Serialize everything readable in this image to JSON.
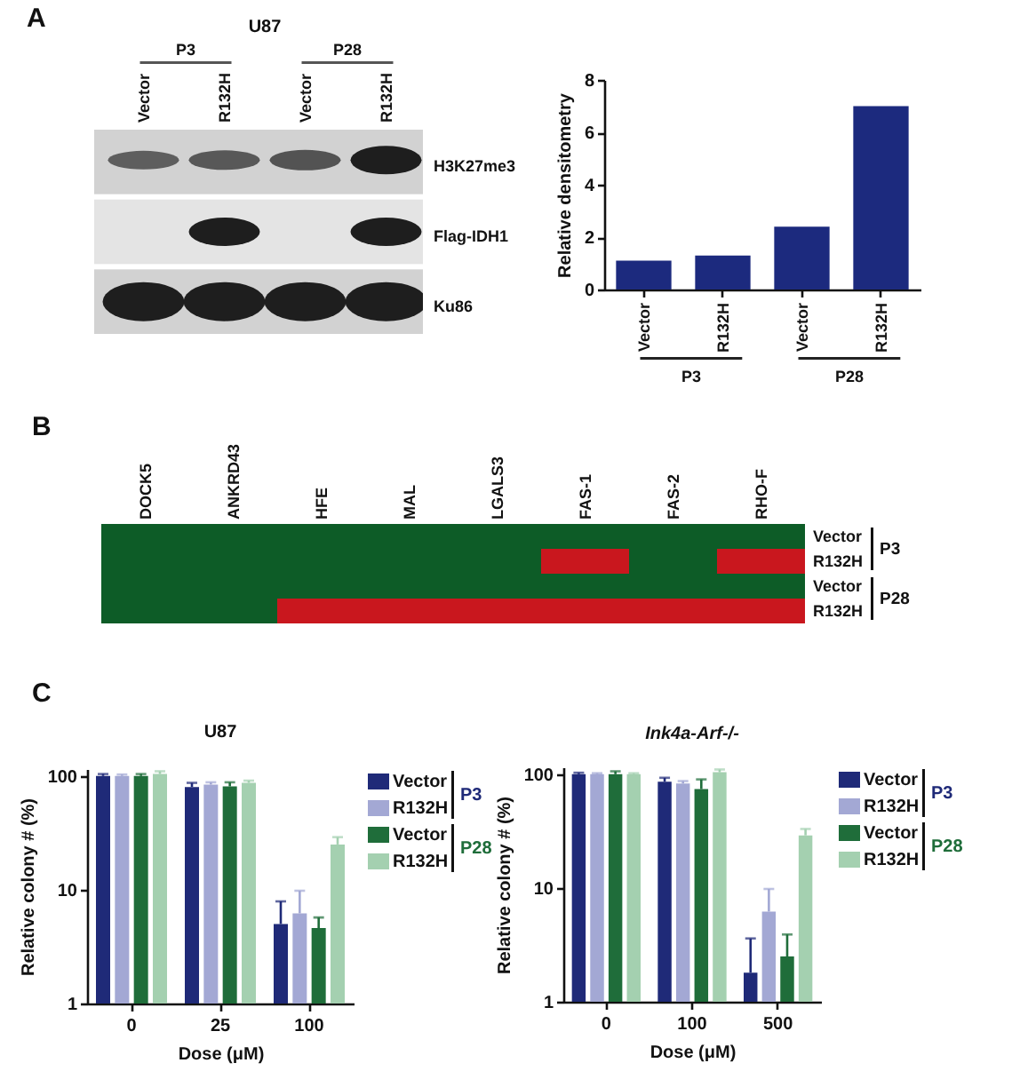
{
  "chart_data": [
    {
      "type": "other",
      "title": "A",
      "subtitle": "U87",
      "categories": [
        "Vector",
        "R132H",
        "Vector",
        "R132H"
      ],
      "y_categories": [
        "H3K27me3",
        "Flag-IDH1",
        "Ku86"
      ],
      "annotations": [
        "P3",
        "P28"
      ]
    },
    {
      "type": "bar",
      "categories": [
        "Vector",
        "R132H",
        "Vector",
        "R132H"
      ],
      "values": [
        1.1,
        1.3,
        2.4,
        7.0
      ],
      "color": "#1c2a7e",
      "ylabel": "Relative densitometry",
      "ylim": [
        0,
        8
      ],
      "yticks": [
        0,
        2,
        4,
        6,
        8
      ],
      "annotations": [
        "P3",
        "P28"
      ]
    },
    {
      "type": "other",
      "title": "B",
      "categories": [
        "DOCK5",
        "ANKRD43",
        "HFE",
        "MAL",
        "LGALS3",
        "FAS-1",
        "FAS-2",
        "RHO-F"
      ],
      "y_categories": [
        "Vector",
        "R132H",
        "Vector",
        "R132H"
      ],
      "colors": [
        [
          "#0d5c27",
          "#0d5c27",
          "#0d5c27",
          "#0d5c27",
          "#0d5c27",
          "#0d5c27",
          "#0d5c27",
          "#0d5c27"
        ],
        [
          "#0d5c27",
          "#0d5c27",
          "#0d5c27",
          "#0d5c27",
          "#0d5c27",
          "#c9171e",
          "#0d5c27",
          "#c9171e"
        ],
        [
          "#0d5c27",
          "#0d5c27",
          "#0d5c27",
          "#0d5c27",
          "#0d5c27",
          "#0d5c27",
          "#0d5c27",
          "#0d5c27"
        ],
        [
          "#0d5c27",
          "#0d5c27",
          "#c9171e",
          "#c9171e",
          "#c9171e",
          "#c9171e",
          "#c9171e",
          "#c9171e"
        ]
      ],
      "annotations": [
        "P3",
        "P28"
      ]
    },
    {
      "type": "bar",
      "title": "C",
      "subtitle": "U87",
      "categories": [
        "0",
        "25",
        "100"
      ],
      "xlabel": "Dose (μM)",
      "ylabel": "Relative colony # (%)",
      "log": true,
      "ylim": [
        1,
        115
      ],
      "yticks": [
        1,
        10,
        100
      ],
      "legend": "top right",
      "annotations": [
        "P3",
        "P28"
      ],
      "series": [
        {
          "name": "Vector",
          "color": "#1f2a78",
          "values": [
            100,
            80,
            5.0
          ],
          "errors": [
            [
              100,
              104
            ],
            [
              80,
              87
            ],
            [
              5.0,
              7.9
            ]
          ]
        },
        {
          "name": "R132H",
          "color": "#a3a8d4",
          "values": [
            100,
            84,
            6.2
          ],
          "errors": [
            [
              100,
              103
            ],
            [
              84,
              88
            ],
            [
              6.2,
              9.8
            ]
          ]
        },
        {
          "name": "Vector",
          "color": "#1f6d3a",
          "values": [
            100,
            81,
            4.6
          ],
          "errors": [
            [
              100,
              104
            ],
            [
              81,
              88
            ],
            [
              4.6,
              5.7
            ]
          ]
        },
        {
          "name": "R132H",
          "color": "#a4d0b0",
          "values": [
            104,
            87,
            25
          ],
          "errors": [
            [
              104,
              110
            ],
            [
              87,
              91
            ],
            [
              25,
              29
            ]
          ]
        }
      ]
    },
    {
      "type": "bar",
      "title": "Ink4a-Arf-/-",
      "categories": [
        "0",
        "100",
        "500"
      ],
      "xlabel": "Dose (μM)",
      "ylabel": "Relative colony # (%)",
      "log": true,
      "ylim": [
        1,
        115
      ],
      "yticks": [
        1,
        10,
        100
      ],
      "legend": "top right",
      "annotations": [
        "P3",
        "P28"
      ],
      "series": [
        {
          "name": "Vector",
          "color": "#1f2a78",
          "values": [
            100,
            86,
            1.8
          ],
          "errors": [
            [
              100,
              103
            ],
            [
              86,
              93
            ],
            [
              1.8,
              3.6
            ]
          ]
        },
        {
          "name": "R132H",
          "color": "#a3a8d4",
          "values": [
            100,
            83,
            6.2
          ],
          "errors": [
            [
              100,
              102
            ],
            [
              83,
              87
            ],
            [
              6.2,
              9.8
            ]
          ]
        },
        {
          "name": "Vector",
          "color": "#1f6d3a",
          "values": [
            100,
            74,
            2.5
          ],
          "errors": [
            [
              100,
              106
            ],
            [
              74,
              90
            ],
            [
              2.5,
              3.9
            ]
          ]
        },
        {
          "name": "R132H",
          "color": "#a4d0b0",
          "values": [
            100,
            104,
            29
          ],
          "errors": [
            [
              100,
              102
            ],
            [
              104,
              110
            ],
            [
              29,
              33
            ]
          ]
        }
      ]
    }
  ]
}
